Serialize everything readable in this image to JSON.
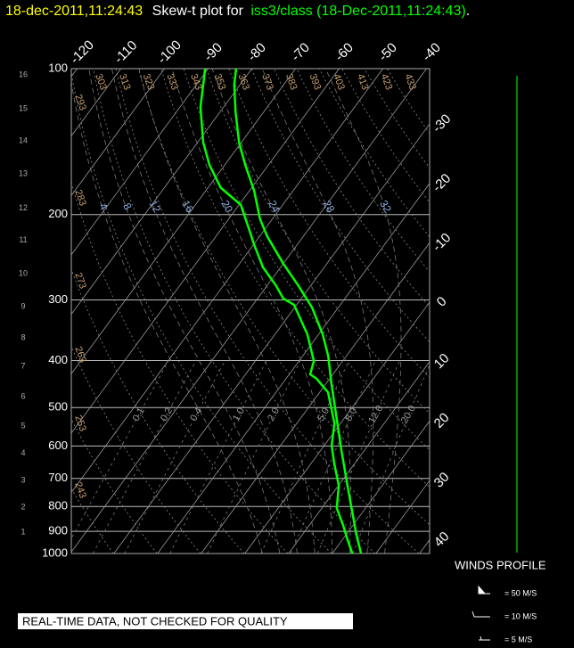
{
  "title": {
    "date": "18-dec-2011,11:24:43",
    "text": "Skew-t plot for",
    "station": "iss3/class (18-Dec-2011,11:24:43)",
    "end": "."
  },
  "chart_data": {
    "type": "skewt",
    "log_y": true,
    "grid": true,
    "ylim": [
      1000,
      100
    ],
    "yticks": [
      100,
      200,
      300,
      400,
      500,
      600,
      700,
      800,
      900,
      1000
    ],
    "xticks": [
      -120,
      -110,
      -100,
      -90,
      -80,
      -70,
      -60,
      -50,
      -40,
      -30,
      -20,
      -10,
      0,
      10,
      20,
      30,
      40
    ],
    "height_ticks": [
      {
        "value": 1,
        "pressure": 903
      },
      {
        "value": 2,
        "pressure": 803
      },
      {
        "value": 3,
        "pressure": 707
      },
      {
        "value": 4,
        "pressure": 622
      },
      {
        "value": 5,
        "pressure": 546
      },
      {
        "value": 6,
        "pressure": 475
      },
      {
        "value": 7,
        "pressure": 411
      },
      {
        "value": 8,
        "pressure": 359
      },
      {
        "value": 9,
        "pressure": 310
      },
      {
        "value": 10,
        "pressure": 265
      },
      {
        "value": 11,
        "pressure": 226
      },
      {
        "value": 12,
        "pressure": 194
      },
      {
        "value": 13,
        "pressure": 165
      },
      {
        "value": 14,
        "pressure": 141
      },
      {
        "value": 15,
        "pressure": 121
      },
      {
        "value": 16,
        "pressure": 103
      }
    ],
    "dry_adiabats": [
      243,
      253,
      263,
      273,
      283,
      293,
      303,
      313,
      323,
      333,
      343,
      353,
      363,
      373,
      383,
      393,
      403,
      413,
      423,
      433
    ],
    "moist_adiabats": [
      4,
      8,
      12,
      16,
      20,
      24,
      28,
      32
    ],
    "mixing_ratios": [
      0.1,
      0.2,
      0.4,
      {
        "value": 1,
        "label": "1.0"
      },
      {
        "value": 2,
        "label": "2.0"
      },
      {
        "value": 5,
        "label": "5.0"
      },
      {
        "value": 8,
        "label": "8.0"
      },
      {
        "value": 12,
        "label": "12.0"
      },
      {
        "value": 20,
        "label": "20.0"
      }
    ],
    "series": [
      {
        "color": "#00ff00",
        "pressure": [
          1000,
          915,
          823,
          725,
          612,
          528,
          446,
          392,
          353,
          311,
          280,
          252,
          222,
          204,
          179,
          158,
          142,
          123,
          108,
          100
        ],
        "values": [
          26.6,
          22.4,
          17.7,
          12.1,
          4.7,
          -1.6,
          -8.8,
          -14.1,
          -19.1,
          -26.0,
          -32.9,
          -40.1,
          -48.2,
          -52.9,
          -58.8,
          -65.3,
          -70.5,
          -76.4,
          -81.3,
          -83.6
        ]
      },
      {
        "color": "#00ff00",
        "pressure": [
          1000,
          935,
          877,
          806,
          725,
          652,
          599,
          539,
          465,
          436,
          427,
          401,
          353,
          307,
          298,
          280,
          257,
          231,
          212,
          191,
          176,
          158,
          142,
          120,
          108,
          100
        ],
        "values": [
          24.6,
          21.1,
          17.9,
          13.4,
          10.1,
          5.3,
          1.7,
          -1.4,
          -8.1,
          -13.0,
          -15.2,
          -16.6,
          -22.6,
          -30.6,
          -34.1,
          -38.0,
          -44.0,
          -49.8,
          -54.2,
          -59.6,
          -67.1,
          -73.5,
          -78.7,
          -85.3,
          -88.4,
          -90.7
        ]
      }
    ]
  },
  "winds": {
    "title": "WINDS PROFILE",
    "legend": [
      "= 50 M/S",
      "= 10 M/S",
      "= 5 M/S"
    ]
  },
  "notice": "REAL-TIME DATA, NOT CHECKED FOR QUALITY"
}
